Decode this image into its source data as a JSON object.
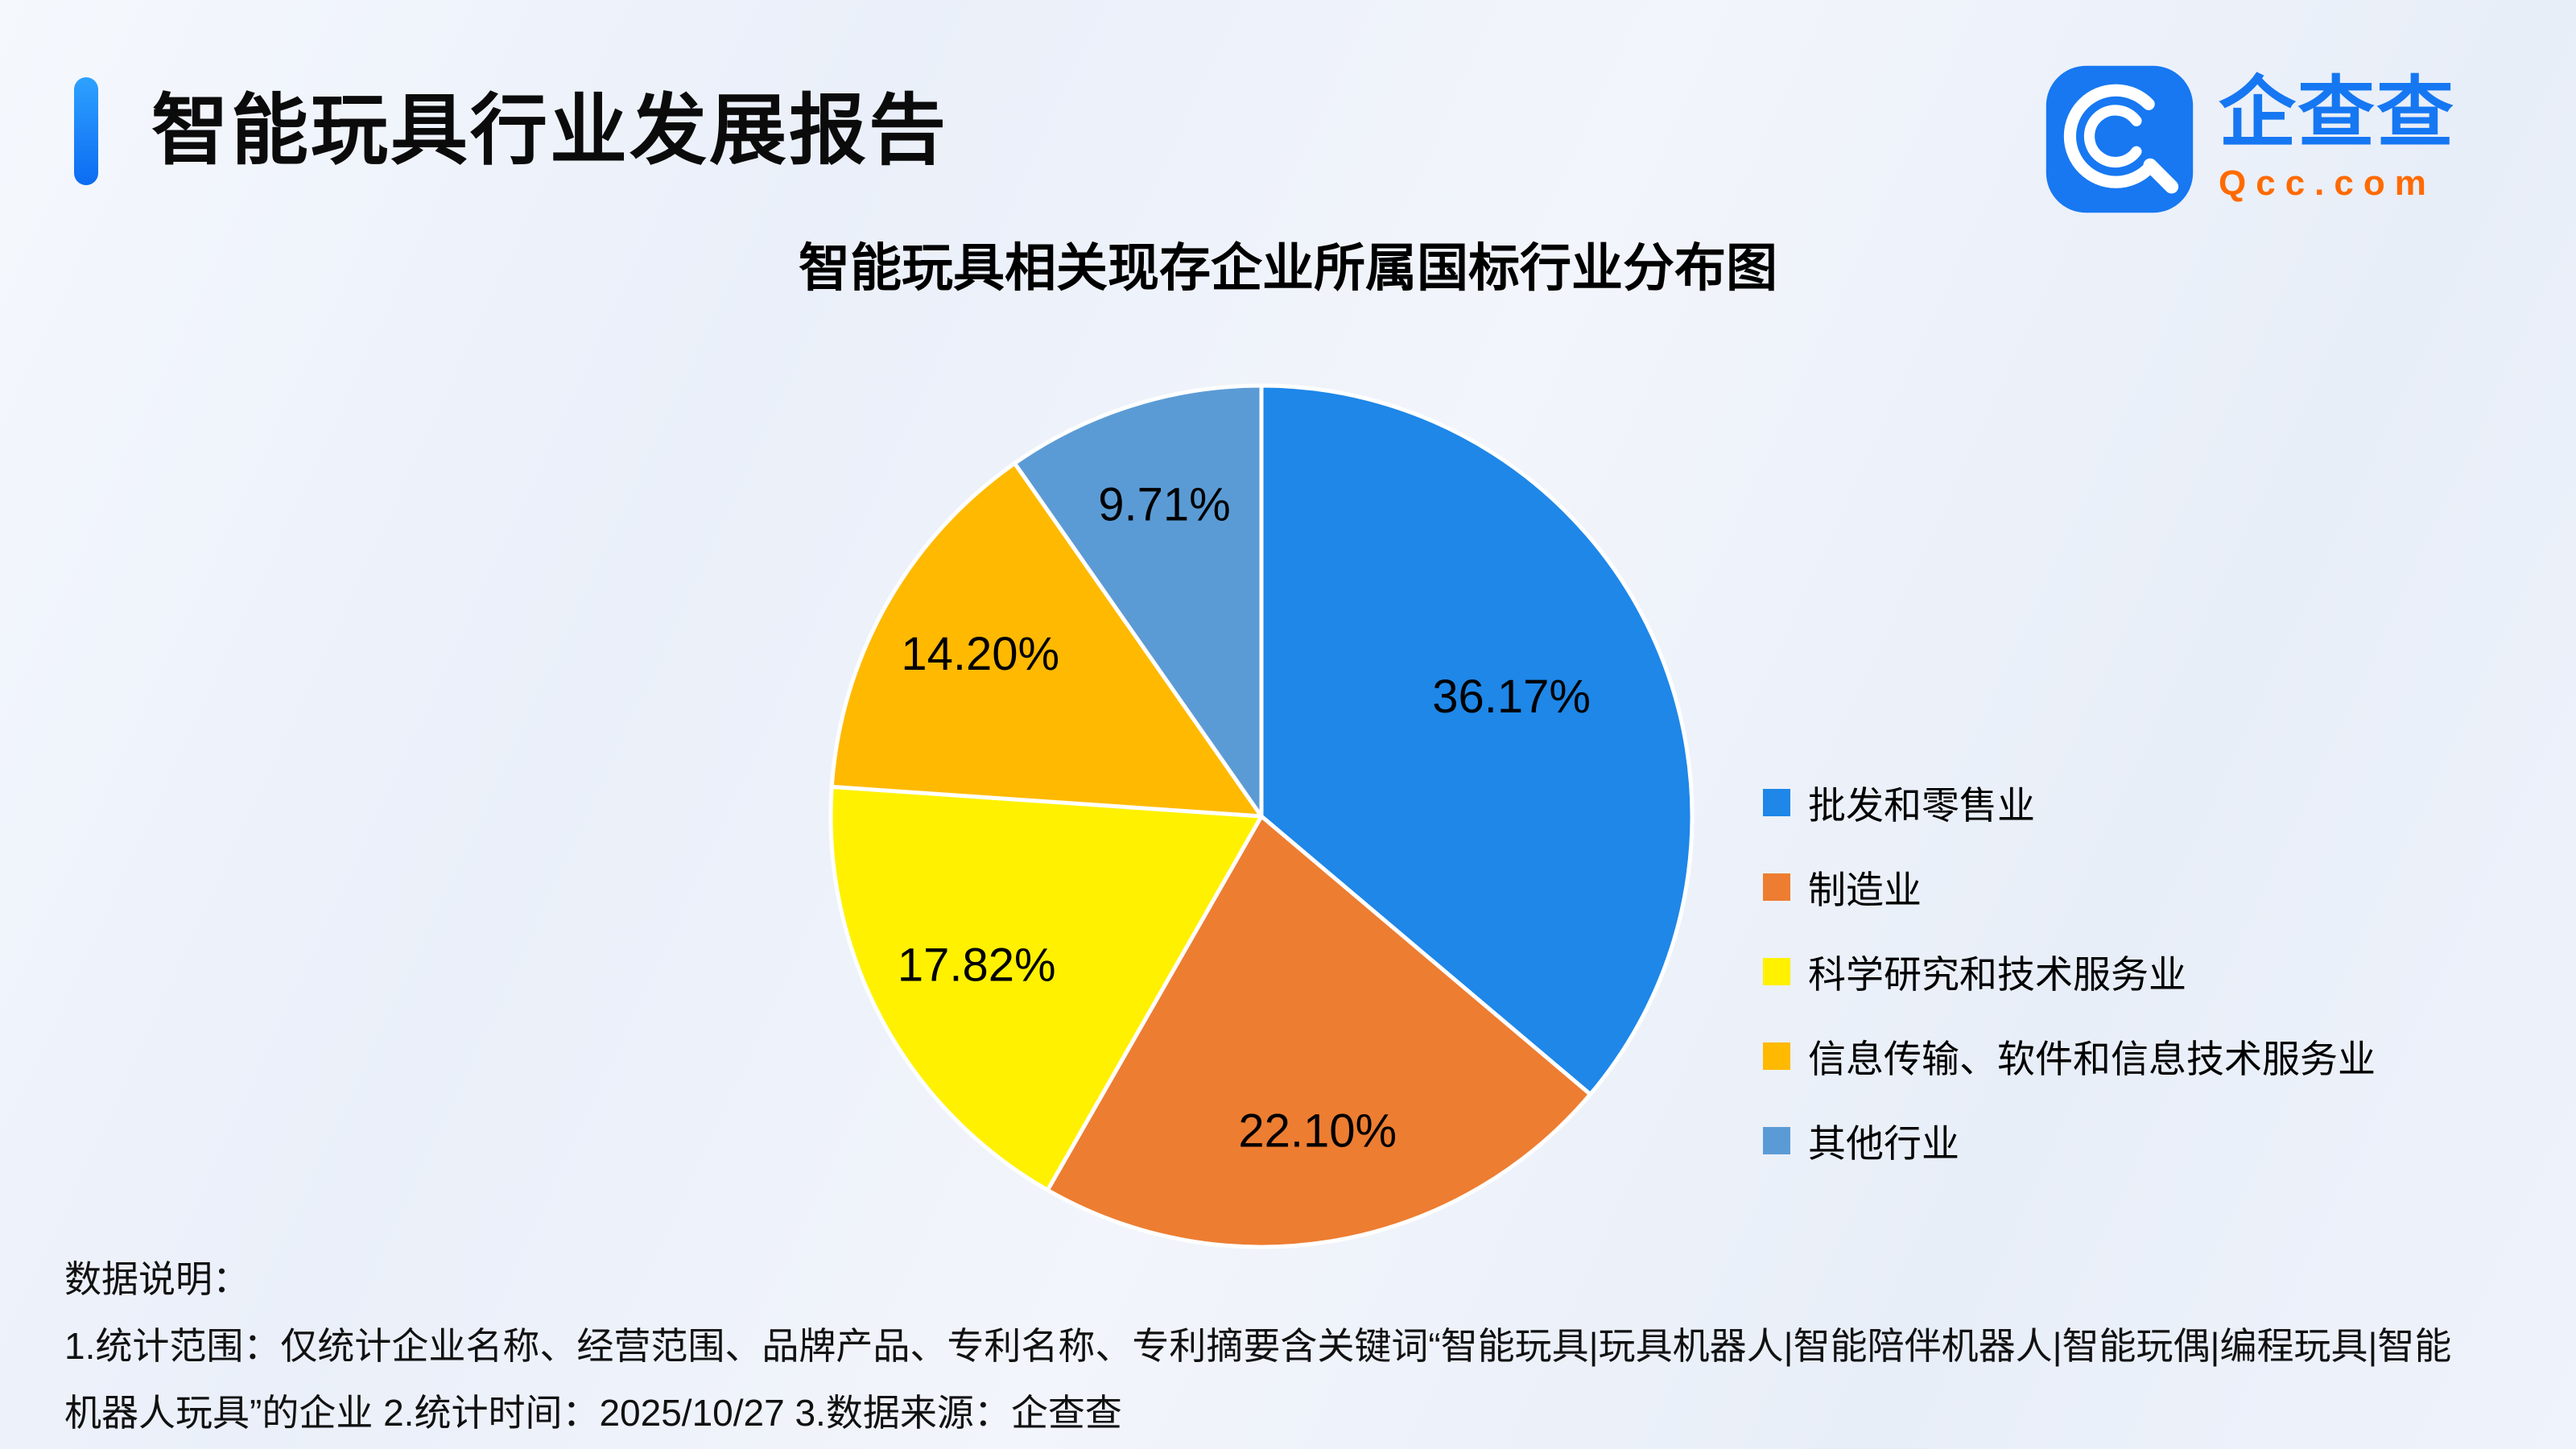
{
  "header": {
    "title": "智能玩具行业发展报告",
    "accent_color": "#1677ff"
  },
  "logo": {
    "name": "企查查",
    "domain": "Qcc.com",
    "blue": "#1677f2",
    "orange": "#ff6a00"
  },
  "chart_data": {
    "type": "pie",
    "title": "智能玩具相关现存企业所属国标行业分布图",
    "categories": [
      "批发和零售业",
      "制造业",
      "科学研究和技术服务业",
      "信息传输、软件和信息技术服务业",
      "其他行业"
    ],
    "values": [
      36.17,
      22.1,
      17.82,
      14.2,
      9.71
    ],
    "labels": [
      "36.17%",
      "22.10%",
      "17.82%",
      "14.20%",
      "9.71%"
    ],
    "colors": [
      "#1e87e8",
      "#ed7d31",
      "#fff100",
      "#ffb900",
      "#5b9bd5"
    ],
    "start_angle_deg": 0,
    "direction": "clockwise",
    "legend_position": "right",
    "label_color": "#000000"
  },
  "footer": {
    "heading": "数据说明：",
    "note": "1.统计范围：仅统计企业名称、经营范围、品牌产品、专利名称、专利摘要含关键词“智能玩具|玩具机器人|智能陪伴机器人|智能玩偶|编程玩具|智能机器人玩具”的企业 2.统计时间：2025/10/27 3.数据来源：企查查"
  }
}
